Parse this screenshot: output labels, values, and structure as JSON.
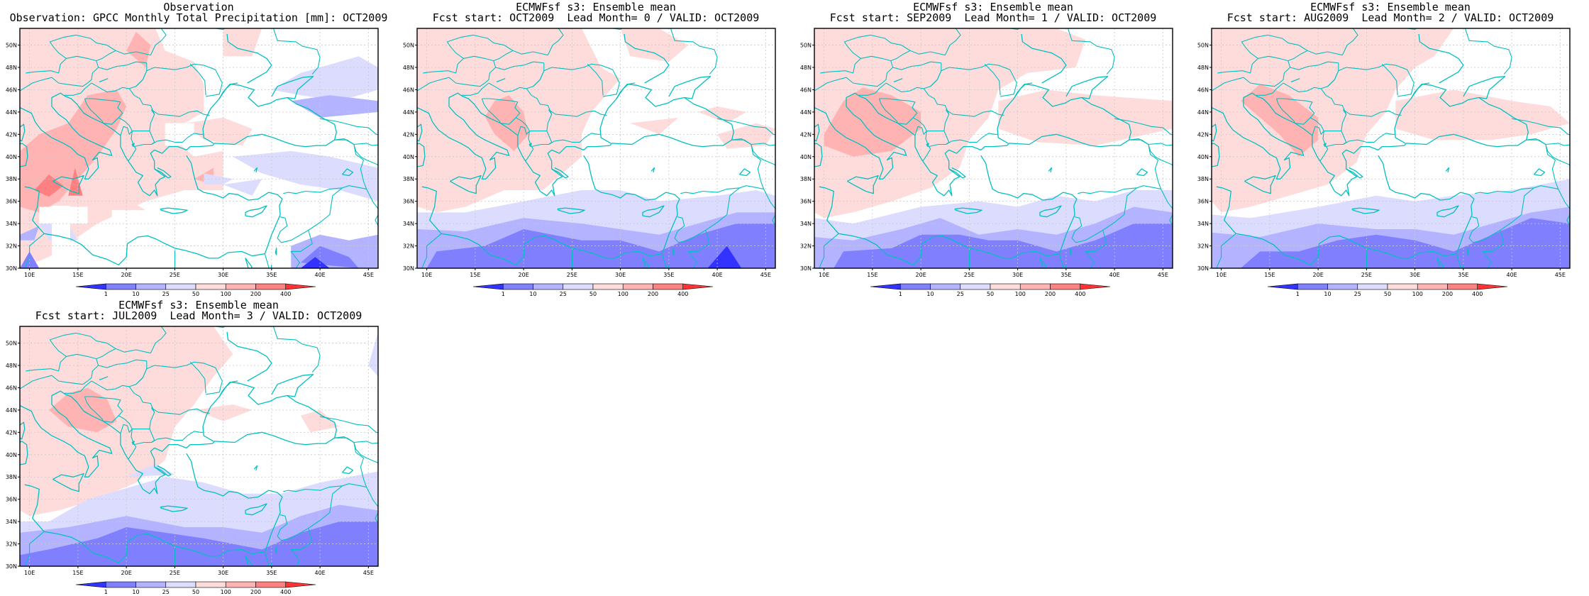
{
  "figure": {
    "colorbar": {
      "levels": [
        "1",
        "10",
        "25",
        "50",
        "100",
        "200",
        "400"
      ],
      "colors": [
        "#3333ff",
        "#8080ff",
        "#b3b3ff",
        "#dcdcff",
        "#ffdcdc",
        "#ffb3b3",
        "#ff8080",
        "#ff3333"
      ]
    },
    "lon_ticks": [
      "10E",
      "15E",
      "20E",
      "25E",
      "30E",
      "35E",
      "40E",
      "45E"
    ],
    "lat_ticks": [
      "30N",
      "32N",
      "34N",
      "36N",
      "38N",
      "40N",
      "42N",
      "44N",
      "46N",
      "48N",
      "50N"
    ],
    "coastline_color": "#00c0c0",
    "grid": true
  },
  "panels": [
    {
      "id": "obs",
      "title_line1": "Observation",
      "title_line2": "Observation: GPCC Monthly Total Precipitation [mm]: OCT2009"
    },
    {
      "id": "lead0",
      "title_line1": "ECMWFsf s3: Ensemble mean",
      "title_line2": "Fcst start: OCT2009  Lead Month= 0 / VALID: OCT2009"
    },
    {
      "id": "lead1",
      "title_line1": "ECMWFsf s3: Ensemble mean",
      "title_line2": "Fcst start: SEP2009  Lead Month= 1 / VALID: OCT2009"
    },
    {
      "id": "lead2",
      "title_line1": "ECMWFsf s3: Ensemble mean",
      "title_line2": "Fcst start: AUG2009  Lead Month= 2 / VALID: OCT2009"
    },
    {
      "id": "lead3",
      "title_line1": "ECMWFsf s3: Ensemble mean",
      "title_line2": "Fcst start: JUL2009  Lead Month= 3 / VALID: OCT2009"
    }
  ]
}
